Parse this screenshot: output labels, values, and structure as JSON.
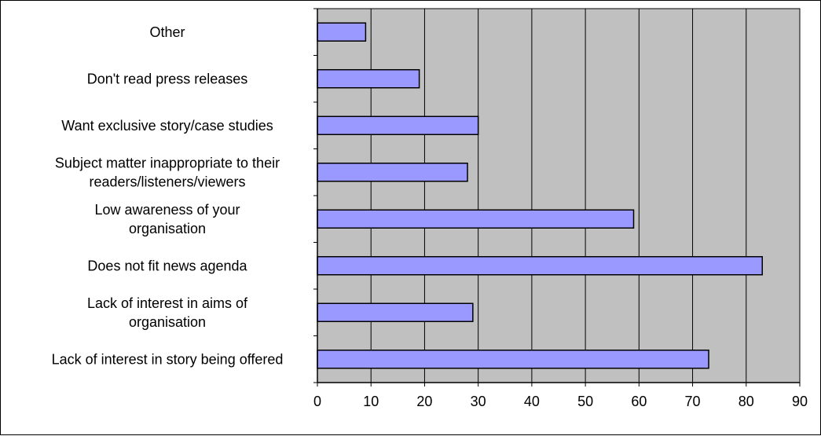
{
  "chart_data": {
    "type": "bar",
    "orientation": "horizontal",
    "categories": [
      "Lack of interest in story being offered",
      "Lack of interest in aims of organisation",
      "Does not fit news agenda",
      "Low awareness of your organisation",
      "Subject matter inappropriate to their readers/listeners/viewers",
      "Want exclusive story/case studies",
      "Don't read press releases",
      "Other"
    ],
    "category_label_lines": [
      [
        "Lack of interest in story being offered"
      ],
      [
        "Lack of interest in aims of",
        "organisation"
      ],
      [
        "Does not fit news agenda"
      ],
      [
        "Low awareness of your",
        "organisation"
      ],
      [
        "Subject matter inappropriate to their",
        "readers/listeners/viewers"
      ],
      [
        "Want exclusive story/case studies"
      ],
      [
        "Don't read press releases"
      ],
      [
        "Other"
      ]
    ],
    "values": [
      73,
      29,
      83,
      59,
      28,
      30,
      19,
      9
    ],
    "xlim": [
      0,
      90
    ],
    "xticks": [
      0,
      10,
      20,
      30,
      40,
      50,
      60,
      70,
      80,
      90
    ],
    "xtick_labels": [
      "0",
      "10",
      "20",
      "30",
      "40",
      "50",
      "60",
      "70",
      "80",
      "90"
    ],
    "title": "",
    "xlabel": "",
    "ylabel": "",
    "grid": "vertical",
    "legend": "none",
    "colors": {
      "bar_fill": "#9999ff",
      "bar_stroke": "#000000",
      "plot_background": "#c0c0c0",
      "grid": "#000000"
    }
  }
}
